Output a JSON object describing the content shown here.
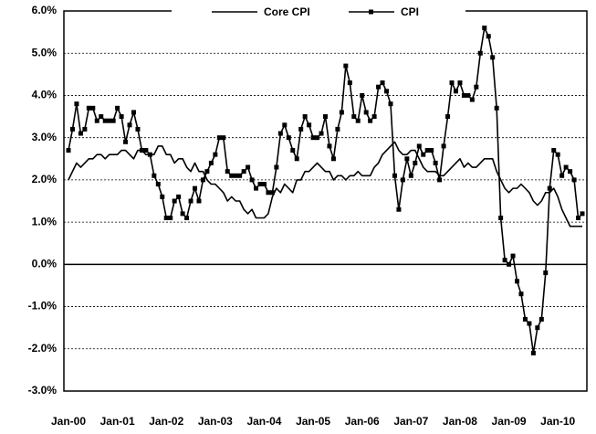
{
  "chart_data": {
    "type": "line",
    "categories": [
      "Jan-00",
      null,
      null,
      null,
      null,
      null,
      null,
      null,
      null,
      null,
      null,
      null,
      "Jan-01",
      null,
      null,
      null,
      null,
      null,
      null,
      null,
      null,
      null,
      null,
      null,
      "Jan-02",
      null,
      null,
      null,
      null,
      null,
      null,
      null,
      null,
      null,
      null,
      null,
      "Jan-03",
      null,
      null,
      null,
      null,
      null,
      null,
      null,
      null,
      null,
      null,
      null,
      "Jan-04",
      null,
      null,
      null,
      null,
      null,
      null,
      null,
      null,
      null,
      null,
      null,
      "Jan-05",
      null,
      null,
      null,
      null,
      null,
      null,
      null,
      null,
      null,
      null,
      null,
      "Jan-06",
      null,
      null,
      null,
      null,
      null,
      null,
      null,
      null,
      null,
      null,
      null,
      "Jan-07",
      null,
      null,
      null,
      null,
      null,
      null,
      null,
      null,
      null,
      null,
      null,
      "Jan-08",
      null,
      null,
      null,
      null,
      null,
      null,
      null,
      null,
      null,
      null,
      null,
      "Jan-09",
      null,
      null,
      null,
      null,
      null,
      null,
      null,
      null,
      null,
      null,
      null,
      "Jan-10",
      null,
      null,
      null,
      null,
      null,
      null
    ],
    "series": [
      {
        "name": "Core CPI",
        "color": "#000000",
        "marker": "none",
        "values": [
          2.0,
          2.2,
          2.4,
          2.3,
          2.4,
          2.5,
          2.5,
          2.6,
          2.6,
          2.5,
          2.6,
          2.6,
          2.6,
          2.7,
          2.7,
          2.6,
          2.5,
          2.7,
          2.7,
          2.6,
          2.6,
          2.6,
          2.8,
          2.8,
          2.6,
          2.6,
          2.4,
          2.5,
          2.5,
          2.3,
          2.2,
          2.4,
          2.2,
          2.2,
          2.0,
          1.9,
          1.9,
          1.8,
          1.7,
          1.5,
          1.6,
          1.5,
          1.5,
          1.3,
          1.2,
          1.3,
          1.1,
          1.1,
          1.1,
          1.2,
          1.6,
          1.8,
          1.7,
          1.9,
          1.8,
          1.7,
          2.0,
          2.0,
          2.2,
          2.2,
          2.3,
          2.4,
          2.3,
          2.2,
          2.2,
          2.0,
          2.1,
          2.1,
          2.0,
          2.1,
          2.1,
          2.2,
          2.1,
          2.1,
          2.1,
          2.3,
          2.4,
          2.6,
          2.7,
          2.8,
          2.9,
          2.7,
          2.6,
          2.6,
          2.7,
          2.7,
          2.5,
          2.3,
          2.2,
          2.2,
          2.2,
          2.1,
          2.1,
          2.2,
          2.3,
          2.4,
          2.5,
          2.3,
          2.4,
          2.3,
          2.3,
          2.4,
          2.5,
          2.5,
          2.5,
          2.2,
          2.0,
          1.8,
          1.7,
          1.8,
          1.8,
          1.9,
          1.8,
          1.7,
          1.5,
          1.4,
          1.5,
          1.7,
          1.7,
          1.8,
          1.6,
          1.3,
          1.1,
          0.9,
          0.9,
          0.9,
          0.9
        ]
      },
      {
        "name": "CPI",
        "color": "#000000",
        "marker": "square",
        "values": [
          2.7,
          3.2,
          3.8,
          3.1,
          3.2,
          3.7,
          3.7,
          3.4,
          3.5,
          3.4,
          3.4,
          3.4,
          3.7,
          3.5,
          2.9,
          3.3,
          3.6,
          3.2,
          2.7,
          2.7,
          2.6,
          2.1,
          1.9,
          1.6,
          1.1,
          1.1,
          1.5,
          1.6,
          1.2,
          1.1,
          1.5,
          1.8,
          1.5,
          2.0,
          2.2,
          2.4,
          2.6,
          3.0,
          3.0,
          2.2,
          2.1,
          2.1,
          2.1,
          2.2,
          2.3,
          2.0,
          1.8,
          1.9,
          1.9,
          1.7,
          1.7,
          2.3,
          3.1,
          3.3,
          3.0,
          2.7,
          2.5,
          3.2,
          3.5,
          3.3,
          3.0,
          3.0,
          3.1,
          3.5,
          2.8,
          2.5,
          3.2,
          3.6,
          4.7,
          4.3,
          3.5,
          3.4,
          4.0,
          3.6,
          3.4,
          3.5,
          4.2,
          4.3,
          4.1,
          3.8,
          2.1,
          1.3,
          2.0,
          2.5,
          2.1,
          2.4,
          2.8,
          2.6,
          2.7,
          2.7,
          2.4,
          2.0,
          2.8,
          3.5,
          4.3,
          4.1,
          4.3,
          4.0,
          4.0,
          3.9,
          4.2,
          5.0,
          5.6,
          5.4,
          4.9,
          3.7,
          1.1,
          0.1,
          0.0,
          0.2,
          -0.4,
          -0.7,
          -1.3,
          -1.4,
          -2.1,
          -1.5,
          -1.3,
          -0.2,
          1.8,
          2.7,
          2.6,
          2.1,
          2.3,
          2.2,
          2.0,
          1.1,
          1.2
        ]
      }
    ],
    "ylim": [
      -3,
      6
    ],
    "yticks": [
      {
        "value": -3,
        "label": "-3.0%"
      },
      {
        "value": -2,
        "label": "-2.0%"
      },
      {
        "value": -1,
        "label": "-1.0%"
      },
      {
        "value": 0,
        "label": "0.0%"
      },
      {
        "value": 1,
        "label": "1.0%"
      },
      {
        "value": 2,
        "label": "2.0%"
      },
      {
        "value": 3,
        "label": "3.0%"
      },
      {
        "value": 4,
        "label": "4.0%"
      },
      {
        "value": 5,
        "label": "5.0%"
      },
      {
        "value": 6,
        "label": "6.0%"
      }
    ],
    "grid": true,
    "legend": "top"
  }
}
